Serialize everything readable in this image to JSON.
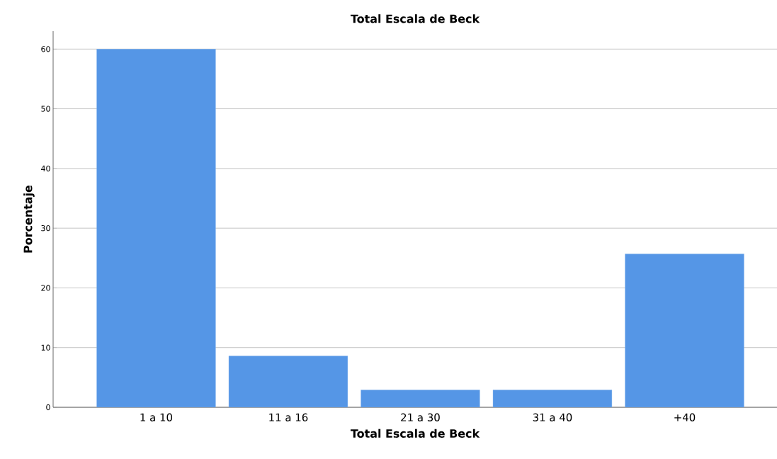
{
  "chart_data": {
    "type": "bar",
    "title": "Total Escala de Beck",
    "xlabel": "Total Escala de Beck",
    "ylabel": "Porcentaje",
    "categories": [
      "1 a 10",
      "11 a 16",
      "21 a 30",
      "31 a 40",
      "+40"
    ],
    "values": [
      60,
      8.6,
      2.9,
      2.9,
      25.7
    ],
    "color": "#5596e6",
    "ylim": [
      0,
      63
    ],
    "yticks": [
      0,
      10,
      20,
      30,
      40,
      50,
      60
    ],
    "grid": "y"
  }
}
